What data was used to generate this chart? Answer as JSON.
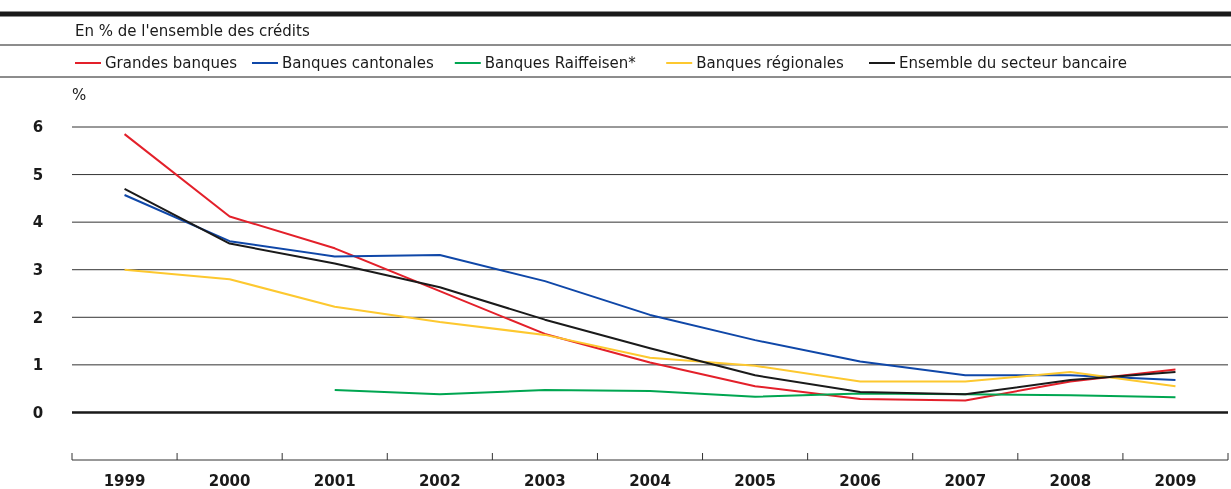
{
  "chart_data": {
    "type": "line",
    "title": "En % de l'ensemble des crédits",
    "ylabel": "%",
    "categories": [
      "1999",
      "2000",
      "2001",
      "2002",
      "2003",
      "2004",
      "2005",
      "2006",
      "2007",
      "2008",
      "2009"
    ],
    "series": [
      {
        "name": "Grandes banques",
        "color": "#e3202a",
        "values": [
          5.85,
          4.12,
          3.45,
          2.55,
          1.65,
          1.05,
          0.55,
          0.28,
          0.25,
          0.65,
          0.9
        ]
      },
      {
        "name": "Banques cantonales",
        "color": "#0f47a8",
        "values": [
          4.57,
          3.6,
          3.28,
          3.31,
          2.76,
          2.05,
          1.52,
          1.07,
          0.78,
          0.78,
          0.68
        ]
      },
      {
        "name": "Banques Raiffeisen*",
        "color": "#00a651",
        "values": [
          null,
          null,
          0.47,
          0.38,
          0.47,
          0.45,
          0.33,
          0.4,
          0.38,
          0.36,
          0.32
        ]
      },
      {
        "name": "Banques régionales",
        "color": "#fdc82f",
        "values": [
          3.0,
          2.8,
          2.22,
          1.9,
          1.63,
          1.15,
          0.98,
          0.65,
          0.65,
          0.85,
          0.55
        ]
      },
      {
        "name": "Ensemble du secteur bancaire",
        "color": "#1a1a1a",
        "values": [
          4.7,
          3.55,
          3.13,
          2.63,
          1.95,
          1.35,
          0.78,
          0.43,
          0.38,
          0.68,
          0.85
        ]
      }
    ],
    "ylim": [
      -1,
      6
    ],
    "yticks": [
      {
        "value": -1,
        "label": null
      },
      0,
      1,
      2,
      3,
      4,
      5,
      6
    ],
    "grid": "y",
    "legend": "top left",
    "ref_lines": [
      {
        "axis": "y",
        "value": 0,
        "color": "#1a1a1a"
      }
    ],
    "marker": "none",
    "line_style": "solid"
  }
}
